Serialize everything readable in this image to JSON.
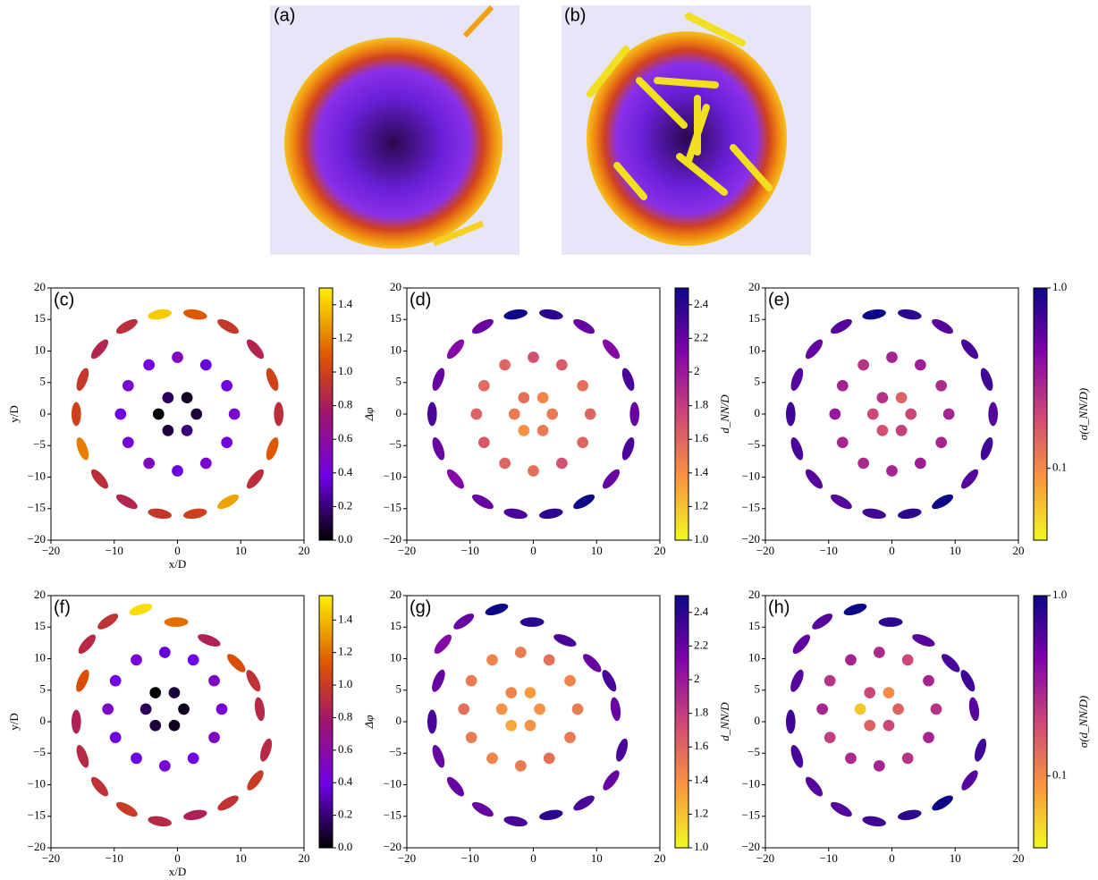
{
  "images": [
    {
      "label": "(a)"
    },
    {
      "label": "(b)"
    }
  ],
  "chart_data": [
    {
      "type": "scatter",
      "panel_label": "(c)",
      "xlabel": "x/D",
      "ylabel": "y/D",
      "colorbar_label": "Δφ",
      "colormap": "gnuplot",
      "clim": [
        0,
        1.5
      ],
      "clog": false,
      "cticks": [
        {
          "value": 0,
          "label": "0.0"
        },
        0.2,
        0.4,
        0.6,
        0.8,
        {
          "value": 1,
          "label": "1.0"
        },
        1.2,
        1.4
      ],
      "xlim": [
        -20,
        20
      ],
      "ylim": [
        -20,
        20
      ],
      "xticks": [
        {
          "value": -20,
          "label": "−20"
        },
        {
          "value": -10,
          "label": "−10"
        },
        0,
        10,
        20
      ],
      "yticks": [
        {
          "value": -20,
          "label": "−20"
        },
        {
          "value": -15,
          "label": "−15"
        },
        {
          "value": -10,
          "label": "−10"
        },
        {
          "value": -5,
          "label": "−5"
        },
        0,
        5,
        10,
        15,
        20
      ],
      "x": [
        3,
        1.5,
        -1.5,
        -3,
        -1.5,
        1.5,
        9,
        7.8,
        4.5,
        0,
        -4.5,
        -7.8,
        -9,
        -7.8,
        -4.5,
        0,
        4.5,
        7.8,
        16,
        15,
        12.3,
        8,
        2.8,
        -2.8,
        -8,
        -12.3,
        -15,
        -16,
        -15,
        -12.3,
        -8,
        -2.8,
        2.8,
        8,
        12.3,
        15
      ],
      "y": [
        0,
        2.6,
        2.6,
        0,
        -2.6,
        -2.6,
        0,
        4.5,
        7.8,
        9,
        7.8,
        4.5,
        0,
        -4.5,
        -7.8,
        -9,
        -7.8,
        -4.5,
        0,
        5.5,
        10.3,
        13.9,
        15.8,
        15.8,
        13.9,
        10.3,
        5.5,
        0,
        -5.5,
        -10.3,
        -13.9,
        -15.8,
        -15.8,
        -13.9,
        -10.3,
        -5.5
      ],
      "c": [
        0.1,
        0.05,
        0.15,
        0,
        0.1,
        0.2,
        0.45,
        0.4,
        0.35,
        0.5,
        0.4,
        0.45,
        0.38,
        0.42,
        0.5,
        0.36,
        0.44,
        0.4,
        0.9,
        1,
        0.85,
        0.95,
        1.1,
        1.4,
        0.9,
        0.85,
        0.95,
        1,
        1.2,
        0.9,
        0.85,
        0.95,
        1,
        1.3,
        0.9,
        1.1
      ]
    },
    {
      "type": "scatter",
      "panel_label": "(d)",
      "colorbar_label": "d_NN/D",
      "colormap": "plasma_r",
      "clim": [
        1,
        2.5
      ],
      "clog": false,
      "cticks": [
        {
          "value": 1,
          "label": "1.0"
        },
        1.2,
        1.4,
        1.6,
        1.8,
        2,
        2.2,
        2.4
      ],
      "xlim": [
        -20,
        20
      ],
      "ylim": [
        -20,
        20
      ],
      "xticks": [
        {
          "value": -20,
          "label": "−20"
        },
        {
          "value": -10,
          "label": "−10"
        },
        0,
        10,
        20
      ],
      "yticks": [
        {
          "value": -20,
          "label": "−20"
        },
        {
          "value": -15,
          "label": "−15"
        },
        {
          "value": -10,
          "label": "−10"
        },
        {
          "value": -5,
          "label": "−5"
        },
        0,
        5,
        10,
        15,
        20
      ],
      "x": [
        3,
        1.5,
        -1.5,
        -3,
        -1.5,
        1.5,
        9,
        7.8,
        4.5,
        0,
        -4.5,
        -7.8,
        -9,
        -7.8,
        -4.5,
        0,
        4.5,
        7.8,
        16,
        15,
        12.3,
        8,
        2.8,
        -2.8,
        -8,
        -12.3,
        -15,
        -16,
        -15,
        -12.3,
        -8,
        -2.8,
        2.8,
        8,
        12.3,
        15
      ],
      "y": [
        0,
        2.6,
        2.6,
        0,
        -2.6,
        -2.6,
        0,
        4.5,
        7.8,
        9,
        7.8,
        4.5,
        0,
        -4.5,
        -7.8,
        -9,
        -7.8,
        -4.5,
        0,
        5.5,
        10.3,
        13.9,
        15.8,
        15.8,
        13.9,
        10.3,
        5.5,
        0,
        -5.5,
        -10.3,
        -13.9,
        -15.8,
        -15.8,
        -13.9,
        -10.3,
        -5.5
      ],
      "c": [
        1.5,
        1.45,
        1.55,
        1.5,
        1.4,
        1.5,
        1.6,
        1.55,
        1.65,
        1.7,
        1.6,
        1.58,
        1.62,
        1.66,
        1.6,
        1.55,
        1.7,
        1.6,
        2.2,
        2.3,
        2.1,
        2.2,
        2.4,
        2.5,
        2.2,
        2.1,
        2.2,
        2.3,
        2.2,
        2.1,
        2.2,
        2.3,
        2.4,
        2.5,
        2.2,
        2.3
      ]
    },
    {
      "type": "scatter",
      "panel_label": "(e)",
      "colorbar_label": "σ(d_NN/D)",
      "colormap": "plasma_r",
      "clim": [
        0.04,
        1
      ],
      "clog": true,
      "cticks": [
        0.1,
        {
          "value": 1,
          "label": "1.0"
        }
      ],
      "xlim": [
        -20,
        20
      ],
      "ylim": [
        -20,
        20
      ],
      "xticks": [
        {
          "value": -20,
          "label": "−20"
        },
        {
          "value": -10,
          "label": "−10"
        },
        0,
        10,
        20
      ],
      "yticks": [
        {
          "value": -20,
          "label": "−20"
        },
        {
          "value": -15,
          "label": "−15"
        },
        {
          "value": -10,
          "label": "−10"
        },
        {
          "value": -5,
          "label": "−5"
        },
        0,
        5,
        10,
        15,
        20
      ],
      "x": [
        3,
        1.5,
        -1.5,
        -3,
        -1.5,
        1.5,
        9,
        7.8,
        4.5,
        0,
        -4.5,
        -7.8,
        -9,
        -7.8,
        -4.5,
        0,
        4.5,
        7.8,
        16,
        15,
        12.3,
        8,
        2.8,
        -2.8,
        -8,
        -12.3,
        -15,
        -16,
        -15,
        -12.3,
        -8,
        -2.8,
        2.8,
        8,
        12.3,
        15
      ],
      "y": [
        0,
        2.6,
        2.6,
        0,
        -2.6,
        -2.6,
        0,
        4.5,
        7.8,
        9,
        7.8,
        4.5,
        0,
        -4.5,
        -7.8,
        -9,
        -7.8,
        -4.5,
        0,
        5.5,
        10.3,
        13.9,
        15.8,
        15.8,
        13.9,
        10.3,
        5.5,
        0,
        -5.5,
        -10.3,
        -13.9,
        -15.8,
        -15.8,
        -13.9,
        -10.3,
        -5.5
      ],
      "c": [
        0.2,
        0.15,
        0.25,
        0.2,
        0.18,
        0.22,
        0.3,
        0.28,
        0.32,
        0.3,
        0.25,
        0.3,
        0.35,
        0.3,
        0.28,
        0.3,
        0.32,
        0.3,
        0.6,
        0.7,
        0.65,
        0.6,
        0.8,
        1,
        0.6,
        0.55,
        0.6,
        0.7,
        0.65,
        0.6,
        0.6,
        0.7,
        0.8,
        1,
        0.6,
        0.7
      ]
    },
    {
      "type": "scatter",
      "panel_label": "(f)",
      "xlabel": "x/D",
      "ylabel": "y/D",
      "colorbar_label": "Δφ",
      "colormap": "gnuplot",
      "clim": [
        0,
        1.55
      ],
      "clog": false,
      "cticks": [
        {
          "value": 0,
          "label": "0.0"
        },
        0.2,
        0.4,
        0.6,
        0.8,
        {
          "value": 1,
          "label": "1.0"
        },
        1.2,
        1.4
      ],
      "xlim": [
        -20,
        20
      ],
      "ylim": [
        -20,
        20
      ],
      "xticks": [
        {
          "value": -20,
          "label": "−20"
        },
        {
          "value": -10,
          "label": "−10"
        },
        0,
        10,
        20
      ],
      "yticks": [
        {
          "value": -20,
          "label": "−20"
        },
        {
          "value": -15,
          "label": "−15"
        },
        {
          "value": -10,
          "label": "−10"
        },
        {
          "value": -5,
          "label": "−5"
        },
        0,
        5,
        10,
        15,
        20
      ],
      "x": [
        1,
        -0.5,
        -3.5,
        -5,
        -3.5,
        -0.5,
        7,
        5.8,
        2.5,
        -2,
        -6.5,
        -9.8,
        -11,
        -9.8,
        -6.5,
        -2,
        2.5,
        5.8,
        13,
        12,
        9.3,
        5,
        -0.2,
        -5.8,
        -11,
        -14.3,
        -15,
        -16,
        -15,
        -12.3,
        -8,
        -2.8,
        2.8,
        8,
        12.3,
        14
      ],
      "y": [
        2,
        4.6,
        4.6,
        2,
        -0.6,
        -0.6,
        2,
        6.5,
        9.8,
        11,
        9.8,
        6.5,
        2,
        -2.5,
        -5.8,
        -7,
        -5.8,
        -2.5,
        2,
        6.5,
        9.3,
        12.9,
        15.8,
        17.8,
        15.9,
        12.3,
        6.5,
        0,
        -5.5,
        -10.3,
        -13.9,
        -15.8,
        -14.8,
        -12.9,
        -9.3,
        -4.5
      ],
      "c": [
        0.05,
        0.1,
        0,
        0.15,
        0.1,
        0.05,
        0.45,
        0.5,
        0.4,
        0.35,
        0.45,
        0.4,
        0.5,
        0.42,
        0.38,
        0.45,
        0.4,
        0.5,
        0.9,
        0.95,
        1.1,
        0.85,
        1.2,
        1.5,
        0.95,
        0.9,
        1.1,
        0.85,
        0.9,
        0.95,
        1,
        0.9,
        0.85,
        0.95,
        1,
        0.9
      ]
    },
    {
      "type": "scatter",
      "panel_label": "(g)",
      "colorbar_label": "d_NN/D",
      "colormap": "plasma_r",
      "clim": [
        1,
        2.5
      ],
      "clog": false,
      "cticks": [
        {
          "value": 1,
          "label": "1.0"
        },
        1.2,
        1.4,
        1.6,
        1.8,
        2,
        2.2,
        2.4
      ],
      "xlim": [
        -20,
        20
      ],
      "ylim": [
        -20,
        20
      ],
      "xticks": [
        {
          "value": -20,
          "label": "−20"
        },
        {
          "value": -10,
          "label": "−10"
        },
        0,
        10,
        20
      ],
      "yticks": [
        {
          "value": -20,
          "label": "−20"
        },
        {
          "value": -15,
          "label": "−15"
        },
        {
          "value": -10,
          "label": "−10"
        },
        {
          "value": -5,
          "label": "−5"
        },
        0,
        5,
        10,
        15,
        20
      ],
      "x": [
        1,
        -0.5,
        -3.5,
        -5,
        -3.5,
        -0.5,
        7,
        5.8,
        2.5,
        -2,
        -6.5,
        -9.8,
        -11,
        -9.8,
        -6.5,
        -2,
        2.5,
        5.8,
        13,
        12,
        9.3,
        5,
        -0.2,
        -5.8,
        -11,
        -14.3,
        -15,
        -16,
        -15,
        -12.3,
        -8,
        -2.8,
        2.8,
        8,
        12.3,
        14
      ],
      "y": [
        2,
        4.6,
        4.6,
        2,
        -0.6,
        -0.6,
        2,
        6.5,
        9.8,
        11,
        9.8,
        6.5,
        2,
        -2.5,
        -5.8,
        -7,
        -5.8,
        -2.5,
        2,
        6.5,
        9.3,
        12.9,
        15.8,
        17.8,
        15.9,
        12.3,
        6.5,
        0,
        -5.5,
        -10.3,
        -13.9,
        -15.8,
        -14.8,
        -12.9,
        -9.3,
        -4.5
      ],
      "c": [
        1.4,
        1.35,
        1.45,
        1.4,
        1.3,
        1.4,
        1.5,
        1.45,
        1.55,
        1.5,
        1.45,
        1.5,
        1.55,
        1.5,
        1.45,
        1.5,
        1.55,
        1.5,
        2.2,
        2.3,
        2.2,
        2.3,
        2.4,
        2.5,
        2.2,
        2.1,
        2.2,
        2.3,
        2.2,
        2.2,
        2.2,
        2.3,
        2.4,
        2.3,
        2.2,
        2.3
      ]
    },
    {
      "type": "scatter",
      "panel_label": "(h)",
      "colorbar_label": "σ(d_NN/D)",
      "colormap": "plasma_r",
      "clim": [
        0.04,
        1
      ],
      "clog": true,
      "cticks": [
        0.1,
        {
          "value": 1,
          "label": "1.0"
        }
      ],
      "xlim": [
        -20,
        20
      ],
      "ylim": [
        -20,
        20
      ],
      "xticks": [
        {
          "value": -20,
          "label": "−20"
        },
        {
          "value": -10,
          "label": "−10"
        },
        0,
        10,
        20
      ],
      "yticks": [
        {
          "value": -20,
          "label": "−20"
        },
        {
          "value": -15,
          "label": "−15"
        },
        {
          "value": -10,
          "label": "−10"
        },
        {
          "value": -5,
          "label": "−5"
        },
        0,
        5,
        10,
        15,
        20
      ],
      "x": [
        1,
        -0.5,
        -3.5,
        -5,
        -3.5,
        -0.5,
        7,
        5.8,
        2.5,
        -2,
        -6.5,
        -9.8,
        -11,
        -9.8,
        -6.5,
        -2,
        2.5,
        5.8,
        13,
        12,
        9.3,
        5,
        -0.2,
        -5.8,
        -11,
        -14.3,
        -15,
        -16,
        -15,
        -12.3,
        -8,
        -2.8,
        2.8,
        8,
        12.3,
        14
      ],
      "y": [
        2,
        4.6,
        4.6,
        2,
        -0.6,
        -0.6,
        2,
        6.5,
        9.8,
        11,
        9.8,
        6.5,
        2,
        -2.5,
        -5.8,
        -7,
        -5.8,
        -2.5,
        2,
        6.5,
        9.3,
        12.9,
        15.8,
        17.8,
        15.9,
        12.3,
        6.5,
        0,
        -5.5,
        -10.3,
        -13.9,
        -15.8,
        -14.8,
        -12.9,
        -9.3,
        -4.5
      ],
      "c": [
        0.15,
        0.1,
        0.2,
        0.06,
        0.15,
        0.2,
        0.25,
        0.3,
        0.2,
        0.28,
        0.3,
        0.25,
        0.3,
        0.22,
        0.28,
        0.3,
        0.25,
        0.3,
        0.6,
        0.7,
        0.65,
        0.6,
        0.8,
        1,
        0.6,
        0.55,
        0.6,
        0.7,
        0.65,
        0.6,
        0.6,
        0.7,
        0.8,
        1,
        0.6,
        0.7
      ]
    }
  ]
}
